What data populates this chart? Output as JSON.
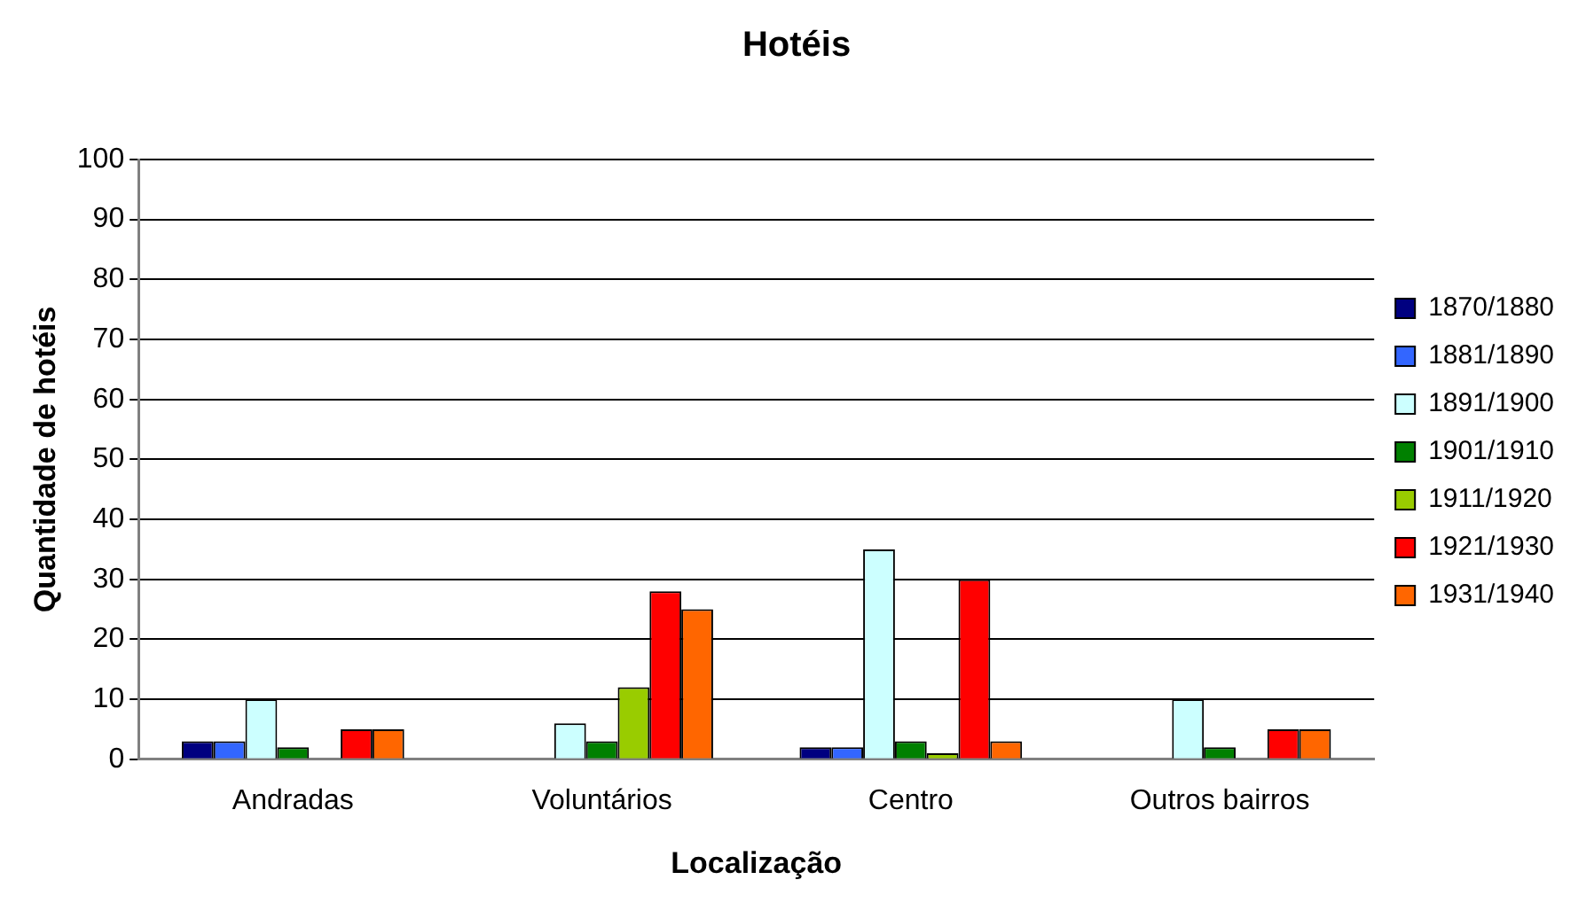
{
  "chart_data": {
    "type": "bar",
    "title": "Hotéis",
    "xlabel": "Localização",
    "ylabel": "Quantidade de hotéis",
    "categories": [
      "Andradas",
      "Voluntários",
      "Centro",
      "Outros bairros"
    ],
    "series": [
      {
        "name": "1870/1880",
        "color": "#000080",
        "values": [
          3,
          null,
          2,
          null
        ]
      },
      {
        "name": "1881/1890",
        "color": "#3366ff",
        "values": [
          3,
          null,
          2,
          null
        ]
      },
      {
        "name": "1891/1900",
        "color": "#ccffff",
        "values": [
          10,
          6,
          35,
          10
        ]
      },
      {
        "name": "1901/1910",
        "color": "#008000",
        "values": [
          2,
          3,
          3,
          2
        ]
      },
      {
        "name": "1911/1920",
        "color": "#99cc00",
        "values": [
          null,
          12,
          1,
          null
        ]
      },
      {
        "name": "1921/1930",
        "color": "#ff0000",
        "values": [
          5,
          28,
          30,
          5
        ]
      },
      {
        "name": "1931/1940",
        "color": "#ff6600",
        "values": [
          5,
          25,
          3,
          5
        ]
      }
    ],
    "ylim": [
      0,
      100
    ],
    "yticks": [
      0,
      10,
      20,
      30,
      40,
      50,
      60,
      70,
      80,
      90,
      100
    ],
    "grid": "y",
    "legend": "right"
  }
}
